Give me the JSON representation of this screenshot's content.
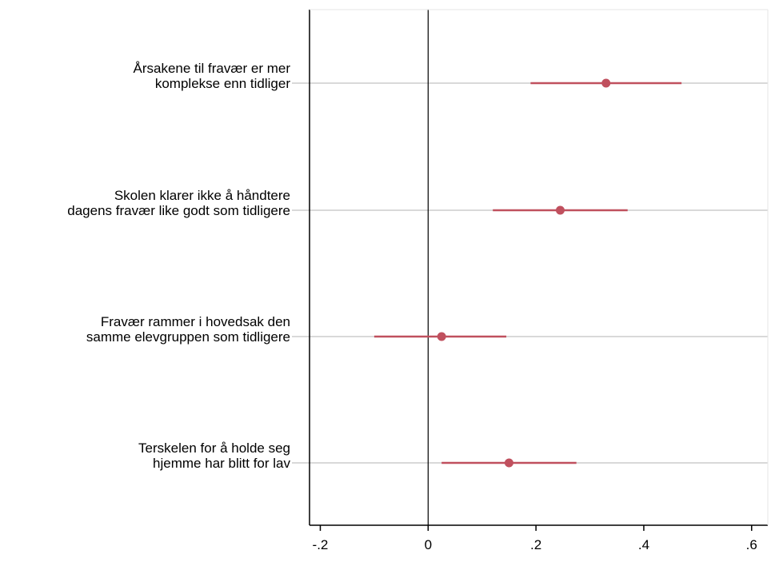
{
  "chart_data": {
    "type": "scatter",
    "subtype": "coefficient plot with confidence intervals",
    "categories": [
      [
        "Årsakene til fravær er mer",
        "komplekse enn tidliger"
      ],
      [
        "Skolen klarer ikke å håndtere",
        "dagens fravær like godt som tidligere"
      ],
      [
        "Fravær rammer i hovedsak den",
        "samme elevgruppen som tidligere"
      ],
      [
        "Terskelen for å holde seg",
        "hjemme har blitt for lav"
      ]
    ],
    "series": [
      {
        "estimates": [
          0.33,
          0.245,
          0.025,
          0.15
        ],
        "ci_low": [
          0.19,
          0.12,
          -0.1,
          0.025
        ],
        "ci_high": [
          0.47,
          0.37,
          0.145,
          0.275
        ]
      }
    ],
    "xlim": [
      -0.22,
      0.63
    ],
    "xticks": [
      -0.2,
      0,
      0.2,
      0.4,
      0.6
    ],
    "xtick_labels": [
      "-.2",
      "0",
      ".2",
      ".4",
      ".6"
    ],
    "reference_line_x": 0,
    "horizontal_gridlines": true,
    "colors": {
      "marker": "#c0505e",
      "gridline": "#d9d9d9",
      "axis": "#000000"
    }
  }
}
